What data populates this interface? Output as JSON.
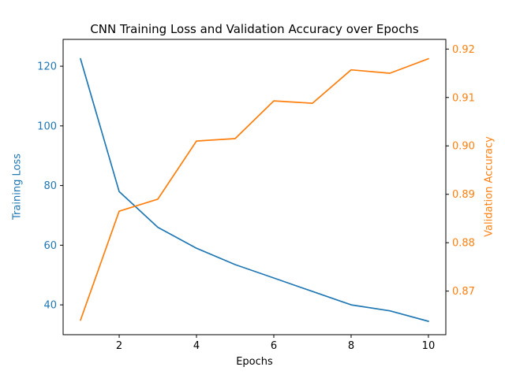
{
  "chart_data": {
    "type": "line",
    "title": "CNN Training Loss and Validation Accuracy over Epochs",
    "xlabel": "Epochs",
    "ylabel_left": "Training Loss",
    "ylabel_right": "Validation Accuracy",
    "x": [
      1,
      2,
      3,
      4,
      5,
      6,
      7,
      8,
      9,
      10
    ],
    "series": [
      {
        "name": "Training Loss",
        "axis": "left",
        "color": "#1f77b4",
        "values": [
          122.5,
          78,
          66,
          59,
          53.5,
          49,
          44.5,
          40,
          38,
          34.5
        ]
      },
      {
        "name": "Validation Accuracy",
        "axis": "right",
        "color": "#ff7f0e",
        "values": [
          0.864,
          0.8865,
          0.889,
          0.901,
          0.9015,
          0.9093,
          0.9088,
          0.9157,
          0.915,
          0.918
        ]
      }
    ],
    "x_ticks": [
      2,
      4,
      6,
      8,
      10
    ],
    "left_ticks": [
      40,
      60,
      80,
      100,
      120
    ],
    "right_ticks": [
      0.87,
      0.88,
      0.89,
      0.9,
      0.91,
      0.92
    ],
    "xlim": [
      0.55,
      10.45
    ],
    "ylim_left": [
      30,
      129
    ],
    "ylim_right": [
      0.861,
      0.922
    ],
    "grid": false,
    "legend": "none"
  },
  "colors": {
    "left_axis": "#1f77b4",
    "right_axis": "#ff7f0e",
    "spine": "#000000",
    "background": "#ffffff"
  }
}
